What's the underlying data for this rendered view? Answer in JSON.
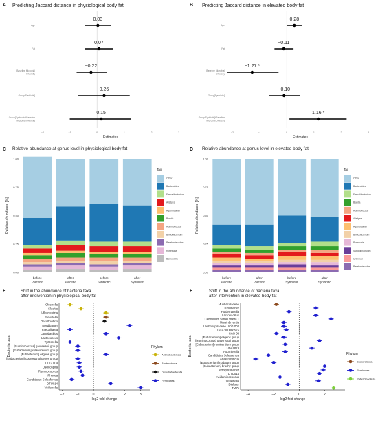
{
  "chart_data": [
    {
      "panel": "A",
      "type": "forest",
      "title": "Predicting Jaccard distance in physiological body fat",
      "xlabel": "Estimates",
      "xlim": [
        -2.2,
        3.2
      ],
      "xticks": [
        -2,
        -1,
        0,
        1,
        2,
        3
      ],
      "rows": [
        {
          "label": "Age",
          "est": 0.03,
          "lo": -0.45,
          "hi": 0.5,
          "text": "0.03"
        },
        {
          "label": "Fat",
          "est": 0.07,
          "lo": -0.45,
          "hi": 0.6,
          "text": "0.07"
        },
        {
          "label": "Baseline Microbial Diversity",
          "est": -0.22,
          "lo": -0.75,
          "hi": 0.35,
          "text": "−0.22"
        },
        {
          "label": "Group[Synbiotic]",
          "est": 0.26,
          "lo": -0.7,
          "hi": 1.2,
          "text": "0.26"
        },
        {
          "label": "Group[Synbiotic]*Baseline Microbial Diversity",
          "est": 0.15,
          "lo": -1.0,
          "hi": 1.25,
          "text": "0.15"
        }
      ]
    },
    {
      "panel": "B",
      "type": "forest",
      "title": "Predicting Jaccard distance in elevated body fat",
      "xlabel": "Estimates",
      "xlim": [
        -2.2,
        3.2
      ],
      "xticks": [
        -2,
        -1,
        0,
        1,
        2,
        3
      ],
      "rows": [
        {
          "label": "Age",
          "est": 0.28,
          "lo": 0.0,
          "hi": 0.55,
          "text": "0.28"
        },
        {
          "label": "Fat",
          "est": -0.11,
          "lo": -0.45,
          "hi": 0.25,
          "text": "−0.11"
        },
        {
          "label": "Baseline Microbial Diversity",
          "est": -1.27,
          "lo": -2.2,
          "hi": -0.3,
          "text": "−1.27 *"
        },
        {
          "label": "Group[Synbiotic]",
          "est": -0.1,
          "lo": -0.65,
          "hi": 0.5,
          "text": "−0.10"
        },
        {
          "label": "Group[Synbiotic]*Baseline Microbial Diversity",
          "est": 1.16,
          "lo": 0.1,
          "hi": 2.2,
          "text": "1.16 *"
        }
      ]
    },
    {
      "panel": "C",
      "type": "stacked_bar",
      "title": "Relative abundance at genus level in physiological body fat",
      "ylabel": "Relative abundance [%]",
      "ylim": [
        0,
        1
      ],
      "yticks": [
        "0.00",
        "0.25",
        "0.50",
        "0.75",
        "1.00"
      ],
      "categories": [
        "before\nPlacebo",
        "after\nPlacebo",
        "before\nSynbiotic",
        "after\nSynbiotic"
      ],
      "legend_title": "Tax",
      "series": [
        {
          "name": "Barnesiella",
          "color": "#bdbdbd",
          "values": [
            0.02,
            0.03,
            0.02,
            0.03
          ]
        },
        {
          "name": "Roseburia",
          "color": "#e6b8d8",
          "values": [
            0.03,
            0.03,
            0.03,
            0.03
          ]
        },
        {
          "name": "Parabacteroides",
          "color": "#8c6bb1",
          "values": [
            0.02,
            0.02,
            0.02,
            0.02
          ]
        },
        {
          "name": "Bifidobacterium",
          "color": "#f2d1a8",
          "values": [
            0.02,
            0.02,
            0.03,
            0.02
          ]
        },
        {
          "name": "Ruminococcus",
          "color": "#f4a582",
          "values": [
            0.03,
            0.03,
            0.03,
            0.03
          ]
        },
        {
          "name": "Blautia",
          "color": "#33a02c",
          "values": [
            0.03,
            0.04,
            0.03,
            0.03
          ]
        },
        {
          "name": "Agathobacter",
          "color": "#fdbf6f",
          "values": [
            0.02,
            0.02,
            0.02,
            0.02
          ]
        },
        {
          "name": "Alistipes",
          "color": "#e31a1c",
          "values": [
            0.04,
            0.05,
            0.05,
            0.05
          ]
        },
        {
          "name": "Faecalibacterium",
          "color": "#b2df8a",
          "values": [
            0.03,
            0.04,
            0.04,
            0.04
          ]
        },
        {
          "name": "Bacteroides",
          "color": "#1f78b4",
          "values": [
            0.24,
            0.3,
            0.33,
            0.32
          ]
        },
        {
          "name": "Other",
          "color": "#a6cee3",
          "values": [
            0.54,
            0.42,
            0.4,
            0.41
          ]
        }
      ]
    },
    {
      "panel": "D",
      "type": "stacked_bar",
      "title": "Relative abundance at genus level in elevated body fat",
      "ylabel": "Relative abundance [%]",
      "ylim": [
        0,
        1
      ],
      "yticks": [
        "0.00",
        "0.25",
        "0.50",
        "0.75",
        "1.00"
      ],
      "categories": [
        "before\nPlacebo",
        "after\nPlacebo",
        "before\nSynbiotic",
        "after\nSynbiotic"
      ],
      "legend_title": "Tax",
      "series": [
        {
          "name": "Parabacteroides",
          "color": "#8c6bb1",
          "values": [
            0.02,
            0.02,
            0.02,
            0.02
          ]
        },
        {
          "name": "Unknown",
          "color": "#fb9a99",
          "values": [
            0.02,
            0.02,
            0.02,
            0.02
          ]
        },
        {
          "name": "Subdoligranulum",
          "color": "#6a3d9a",
          "values": [
            0.02,
            0.02,
            0.03,
            0.02
          ]
        },
        {
          "name": "Roseburia",
          "color": "#e6b8d8",
          "values": [
            0.02,
            0.02,
            0.02,
            0.03
          ]
        },
        {
          "name": "Bifidobacterium",
          "color": "#f2d1a8",
          "values": [
            0.02,
            0.02,
            0.02,
            0.02
          ]
        },
        {
          "name": "Agathobacter",
          "color": "#fdbf6f",
          "values": [
            0.03,
            0.02,
            0.03,
            0.03
          ]
        },
        {
          "name": "Alistipes",
          "color": "#e31a1c",
          "values": [
            0.03,
            0.03,
            0.04,
            0.03
          ]
        },
        {
          "name": "Ruminococcus",
          "color": "#f4a582",
          "values": [
            0.02,
            0.02,
            0.02,
            0.03
          ]
        },
        {
          "name": "Blautia",
          "color": "#33a02c",
          "values": [
            0.03,
            0.03,
            0.03,
            0.03
          ]
        },
        {
          "name": "Faecalibacterium",
          "color": "#b2df8a",
          "values": [
            0.03,
            0.03,
            0.03,
            0.04
          ]
        },
        {
          "name": "Bacteroides",
          "color": "#1f78b4",
          "values": [
            0.18,
            0.19,
            0.24,
            0.22
          ]
        },
        {
          "name": "Other",
          "color": "#a6cee3",
          "values": [
            0.58,
            0.58,
            0.5,
            0.51
          ]
        }
      ]
    },
    {
      "panel": "E",
      "type": "dot_errorbar",
      "title": "Shift in the abundance of bacteria taxa\nafter intervention in physiological body fat",
      "xlabel": "log2 fold change",
      "ylabel": "Bacteria taxa",
      "xlim": [
        -2.2,
        3.6
      ],
      "xticks": [
        -2,
        -1,
        0,
        1,
        2,
        3
      ],
      "legend_title": "Phylum",
      "phyla": [
        {
          "name": "Actinobacteriota",
          "color": "#c9b30a"
        },
        {
          "name": "Bacteroidota",
          "color": "#8c4a1f"
        },
        {
          "name": "Desulfobacterota",
          "color": "#111111"
        },
        {
          "name": "Firmicutes",
          "color": "#1f1fcf"
        }
      ],
      "rows": [
        {
          "taxon": "Olsenella",
          "lfc": -1.5,
          "phylum": "Actinobacteriota"
        },
        {
          "taxon": "Slackia",
          "lfc": -0.8,
          "phylum": "Actinobacteriota"
        },
        {
          "taxon": "Adlercreutzia",
          "lfc": 0.8,
          "phylum": "Actinobacteriota"
        },
        {
          "taxon": "Prevotella",
          "lfc": 0.8,
          "phylum": "Bacteroidota"
        },
        {
          "taxon": "Desulfovibrio",
          "lfc": 0.7,
          "phylum": "Desulfobacterota"
        },
        {
          "taxon": "Merdibacter",
          "lfc": 2.3,
          "phylum": "Firmicutes"
        },
        {
          "taxon": "Faecalitalea",
          "lfc": -1.5,
          "phylum": "Firmicutes"
        },
        {
          "taxon": "Lactobacillus",
          "lfc": 0.8,
          "phylum": "Firmicutes"
        },
        {
          "taxon": "Lactococcus",
          "lfc": 1.6,
          "phylum": "Firmicutes"
        },
        {
          "taxon": "Tyzzerella",
          "lfc": -1.5,
          "phylum": "Firmicutes"
        },
        {
          "taxon": "[Ruminococcus] gauvreauii group",
          "lfc": -1.0,
          "phylum": "Firmicutes"
        },
        {
          "taxon": "[Eubacterium] xylanophilum group",
          "lfc": -1.0,
          "phylum": "Firmicutes"
        },
        {
          "taxon": "[Eubacterium] eligens group",
          "lfc": 0.8,
          "phylum": "Firmicutes"
        },
        {
          "taxon": "[Eubacterium] coprostanoligenes group",
          "lfc": -1.0,
          "phylum": "Firmicutes"
        },
        {
          "taxon": "UCG 009",
          "lfc": -0.9,
          "phylum": "Firmicutes"
        },
        {
          "taxon": "Oscillospira",
          "lfc": -0.9,
          "phylum": "Firmicutes"
        },
        {
          "taxon": "Ruminococcus",
          "lfc": -0.8,
          "phylum": "Firmicutes"
        },
        {
          "taxon": "Phocea",
          "lfc": -0.7,
          "phylum": "Firmicutes"
        },
        {
          "taxon": "Candidatus Soleaferrea",
          "lfc": -1.4,
          "phylum": "Firmicutes"
        },
        {
          "taxon": "DTU014",
          "lfc": 1.1,
          "phylum": "Firmicutes"
        },
        {
          "taxon": "Veillonella",
          "lfc": 3.0,
          "phylum": "Firmicutes"
        }
      ]
    },
    {
      "panel": "F",
      "type": "dot_errorbar",
      "title": "Shift in the abundance of bacteria taxa\nafter intervention in elevated body fat",
      "xlabel": "log2 fold change",
      "ylabel": "Bacteria taxa",
      "xlim": [
        -4.6,
        3.6
      ],
      "xticks": [
        -4,
        -2,
        0,
        2
      ],
      "legend_title": "Phylum",
      "phyla": [
        {
          "name": "Bacteroidota",
          "color": "#8c4a1f"
        },
        {
          "name": "Firmicutes",
          "color": "#1f1fcf"
        },
        {
          "name": "Patescibacteria",
          "color": "#7ccf3a"
        }
      ],
      "rows": [
        {
          "taxon": "Muribaculaceae",
          "lfc": -1.8,
          "phylum": "Bacteroidota"
        },
        {
          "taxon": "Turicibacter",
          "lfc": 1.3,
          "phylum": "Firmicutes"
        },
        {
          "taxon": "Holdemanella",
          "lfc": -0.8,
          "phylum": "Firmicutes"
        },
        {
          "taxon": "Lactobacillus",
          "lfc": 1.3,
          "phylum": "Firmicutes"
        },
        {
          "taxon": "Clostridium sensu stricto 1",
          "lfc": 2.5,
          "phylum": "Firmicutes"
        },
        {
          "taxon": "Marvinbryantia",
          "lfc": -1.2,
          "phylum": "Firmicutes"
        },
        {
          "taxon": "Lachnospiraceae UCG 004",
          "lfc": -1.2,
          "phylum": "Firmicutes"
        },
        {
          "taxon": "GCA 900066575",
          "lfc": -1.0,
          "phylum": "Firmicutes"
        },
        {
          "taxon": "CAG 56",
          "lfc": -1.8,
          "phylum": "Firmicutes"
        },
        {
          "taxon": "[Eubacterium] eligens group",
          "lfc": -1.2,
          "phylum": "Firmicutes"
        },
        {
          "taxon": "[Ruminococcus] gauvreauii group",
          "lfc": 1.6,
          "phylum": "Firmicutes"
        },
        {
          "taxon": "[Eubacterium] ruminantium group",
          "lfc": -1.1,
          "phylum": "Firmicutes"
        },
        {
          "taxon": "UBA1819",
          "lfc": 1.0,
          "phylum": "Firmicutes"
        },
        {
          "taxon": "Fournierella",
          "lfc": -1.1,
          "phylum": "Firmicutes"
        },
        {
          "taxon": "Candidatus Soleaferrea",
          "lfc": -2.4,
          "phylum": "Firmicutes"
        },
        {
          "taxon": "Anaerotruncus",
          "lfc": -3.4,
          "phylum": "Firmicutes"
        },
        {
          "taxon": "[Eubacterium] nodatum group",
          "lfc": -2.0,
          "phylum": "Firmicutes"
        },
        {
          "taxon": "[Eubacterium] brachy group",
          "lfc": 2.0,
          "phylum": "Firmicutes"
        },
        {
          "taxon": "Terrisporobacter",
          "lfc": 1.9,
          "phylum": "Firmicutes"
        },
        {
          "taxon": "DTU014",
          "lfc": 1.6,
          "phylum": "Firmicutes"
        },
        {
          "taxon": "Acidaminococcus",
          "lfc": -1.5,
          "phylum": "Firmicutes"
        },
        {
          "taxon": "Veillonella",
          "lfc": 1.5,
          "phylum": "Firmicutes"
        },
        {
          "taxon": "Dialister",
          "lfc": -0.9,
          "phylum": "Firmicutes"
        },
        {
          "taxon": "TM7x",
          "lfc": 2.7,
          "phylum": "Patescibacteria"
        }
      ]
    }
  ],
  "panel_letters": [
    "A",
    "B",
    "C",
    "D",
    "E",
    "F"
  ]
}
